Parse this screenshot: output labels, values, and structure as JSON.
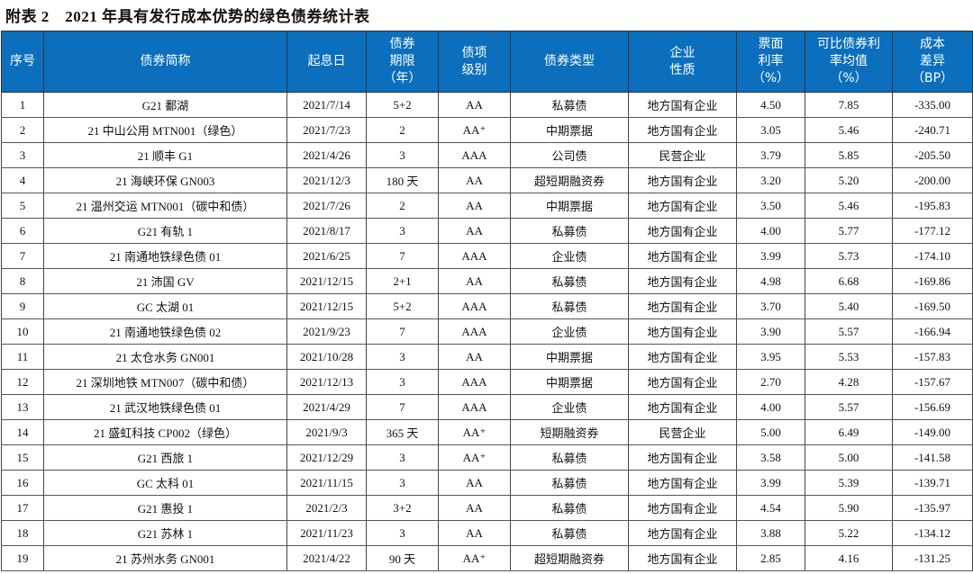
{
  "title": "附表 2　2021 年具有发行成本优势的绿色债券统计表",
  "header_color": "#0b6fbe",
  "columns": [
    "序号",
    "债券简称",
    "起息日",
    "债券\n期限\n（年）",
    "债项\n级别",
    "债券类型",
    "企业\n性质",
    "票面\n利率\n（%）",
    "可比债券利\n率均值\n（%）",
    "成本\n差异\n（BP）"
  ],
  "rows": [
    [
      "1",
      "G21 鄱湖",
      "2021/7/14",
      "5+2",
      "AA",
      "私募债",
      "地方国有企业",
      "4.50",
      "7.85",
      "-335.00"
    ],
    [
      "2",
      "21 中山公用 MTN001（绿色）",
      "2021/7/23",
      "2",
      "AA⁺",
      "中期票据",
      "地方国有企业",
      "3.05",
      "5.46",
      "-240.71"
    ],
    [
      "3",
      "21 顺丰 G1",
      "2021/4/26",
      "3",
      "AAA",
      "公司债",
      "民营企业",
      "3.79",
      "5.85",
      "-205.50"
    ],
    [
      "4",
      "21 海峡环保 GN003",
      "2021/12/3",
      "180 天",
      "AA",
      "超短期融资券",
      "地方国有企业",
      "3.20",
      "5.20",
      "-200.00"
    ],
    [
      "5",
      "21 温州交运 MTN001（碳中和债）",
      "2021/7/26",
      "2",
      "AA",
      "中期票据",
      "地方国有企业",
      "3.50",
      "5.46",
      "-195.83"
    ],
    [
      "6",
      "G21 有轨 1",
      "2021/8/17",
      "3",
      "AA",
      "私募债",
      "地方国有企业",
      "4.00",
      "5.77",
      "-177.12"
    ],
    [
      "7",
      "21 南通地铁绿色债 01",
      "2021/6/25",
      "7",
      "AAA",
      "企业债",
      "地方国有企业",
      "3.99",
      "5.73",
      "-174.10"
    ],
    [
      "8",
      "21 沛国 GV",
      "2021/12/15",
      "2+1",
      "AA",
      "私募债",
      "地方国有企业",
      "4.98",
      "6.68",
      "-169.86"
    ],
    [
      "9",
      "GC 太湖 01",
      "2021/12/15",
      "5+2",
      "AAA",
      "私募债",
      "地方国有企业",
      "3.70",
      "5.40",
      "-169.50"
    ],
    [
      "10",
      "21 南通地铁绿色债 02",
      "2021/9/23",
      "7",
      "AAA",
      "企业债",
      "地方国有企业",
      "3.90",
      "5.57",
      "-166.94"
    ],
    [
      "11",
      "21 太仓水务 GN001",
      "2021/10/28",
      "3",
      "AA",
      "中期票据",
      "地方国有企业",
      "3.95",
      "5.53",
      "-157.83"
    ],
    [
      "12",
      "21 深圳地铁 MTN007（碳中和债）",
      "2021/12/13",
      "3",
      "AAA",
      "中期票据",
      "地方国有企业",
      "2.70",
      "4.28",
      "-157.67"
    ],
    [
      "13",
      "21 武汉地铁绿色债 01",
      "2021/4/29",
      "7",
      "AAA",
      "企业债",
      "地方国有企业",
      "4.00",
      "5.57",
      "-156.69"
    ],
    [
      "14",
      "21 盛虹科技 CP002（绿色）",
      "2021/9/3",
      "365 天",
      "AA⁺",
      "短期融资券",
      "民营企业",
      "5.00",
      "6.49",
      "-149.00"
    ],
    [
      "15",
      "G21 西旅 1",
      "2021/12/29",
      "3",
      "AA⁺",
      "私募债",
      "地方国有企业",
      "3.58",
      "5.00",
      "-141.58"
    ],
    [
      "16",
      "GC 太科 01",
      "2021/11/15",
      "3",
      "AA",
      "私募债",
      "地方国有企业",
      "3.99",
      "5.39",
      "-139.71"
    ],
    [
      "17",
      "G21 惠投 1",
      "2021/2/3",
      "3+2",
      "AA",
      "私募债",
      "地方国有企业",
      "4.54",
      "5.90",
      "-135.97"
    ],
    [
      "18",
      "G21 苏林 1",
      "2021/11/23",
      "3",
      "AA",
      "私募债",
      "地方国有企业",
      "3.88",
      "5.22",
      "-134.12"
    ],
    [
      "19",
      "21 苏州水务 GN001",
      "2021/4/22",
      "90 天",
      "AA⁺",
      "超短期融资券",
      "地方国有企业",
      "2.85",
      "4.16",
      "-131.25"
    ]
  ]
}
